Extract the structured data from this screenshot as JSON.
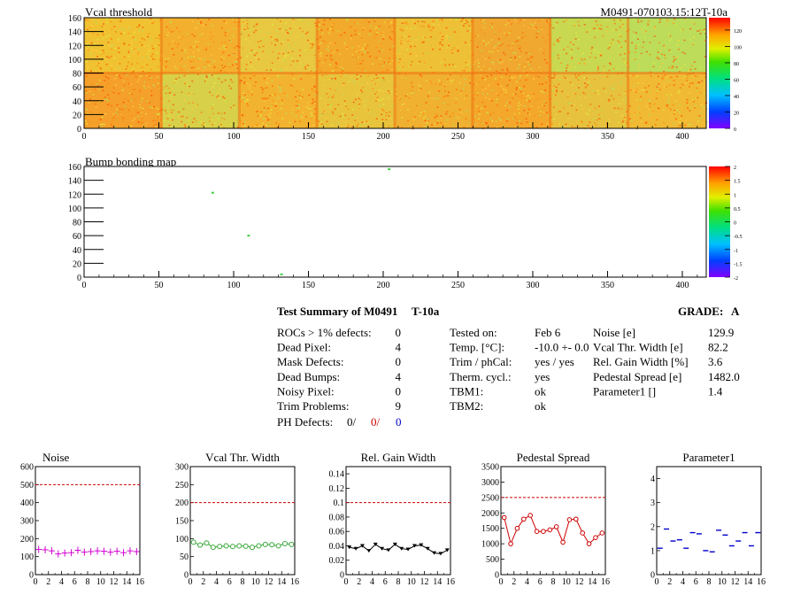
{
  "colors": {
    "map_base": "#f2d23a",
    "pink": "#d400d4",
    "green": "#3aa83a",
    "black": "#000000",
    "red": "#cc0000",
    "blue": "#0000cc",
    "ref_line": "#cc0000"
  },
  "threshold_map": {
    "title": "Vcal threshold",
    "module_label": "M0491-070103.15:12T-10a",
    "xlim": [
      0,
      416
    ],
    "ylim": [
      0,
      160
    ],
    "x_ticks": [
      "0",
      "50",
      "100",
      "150",
      "200",
      "250",
      "300",
      "350",
      "400"
    ],
    "y_ticks": [
      "0",
      "20",
      "40",
      "60",
      "80",
      "100",
      "120",
      "140",
      "160"
    ],
    "z_ticks": [
      "0",
      "20",
      "40",
      "60",
      "80",
      "100",
      "120"
    ],
    "zlim": [
      0,
      135
    ]
  },
  "bump_map": {
    "title": "Bump bonding map",
    "xlim": [
      0,
      416
    ],
    "ylim": [
      0,
      160
    ],
    "x_ticks": [
      "0",
      "50",
      "100",
      "150",
      "200",
      "250",
      "300",
      "350",
      "400"
    ],
    "y_ticks": [
      "0",
      "20",
      "40",
      "60",
      "80",
      "100",
      "120",
      "140",
      "160"
    ],
    "z_ticks": [
      "-2",
      "-1.5",
      "-1",
      "-0.5",
      "0",
      "0.5",
      "1",
      "1.5",
      "2"
    ],
    "zlim": [
      -2,
      2
    ],
    "points": [
      [
        204,
        156
      ],
      [
        86,
        122
      ],
      [
        110,
        60
      ],
      [
        132,
        4
      ]
    ]
  },
  "summary": {
    "title": "Test Summary of M0491",
    "module_type": "T-10a",
    "grade_label": "GRADE:",
    "grade": "A",
    "defects": [
      {
        "label": "ROCs > 1% defects:",
        "value": "0"
      },
      {
        "label": "Dead Pixel:",
        "value": "4"
      },
      {
        "label": "Mask Defects:",
        "value": "0"
      },
      {
        "label": "Dead Bumps:",
        "value": "4"
      },
      {
        "label": "Noisy Pixel:",
        "value": "0"
      },
      {
        "label": "Trim Problems:",
        "value": "9"
      }
    ],
    "ph_label": "PH Defects:",
    "ph_values": [
      "0/",
      "0/",
      "0"
    ],
    "conditions": [
      {
        "label": "Tested on:",
        "value": "Feb 6"
      },
      {
        "label": "Temp. [°C]:",
        "value": "-10.0 +- 0.0"
      },
      {
        "label": "Trim / phCal:",
        "value": "yes / yes"
      },
      {
        "label": "Therm. cycl.:",
        "value": "yes"
      },
      {
        "label": "TBM1:",
        "value": "ok"
      },
      {
        "label": "TBM2:",
        "value": "ok"
      }
    ],
    "results": [
      {
        "label": "Noise [e]",
        "value": "129.9"
      },
      {
        "label": "Vcal Thr. Width [e]",
        "value": "82.2"
      },
      {
        "label": "Rel. Gain Width [%]",
        "value": "3.6"
      },
      {
        "label": "Pedestal Spread [e]",
        "value": "1482.0"
      },
      {
        "label": "Parameter1 []",
        "value": "1.4"
      }
    ]
  },
  "chart_data": [
    {
      "type": "scatter",
      "title": "Noise",
      "x": [
        0,
        1,
        2,
        3,
        4,
        5,
        6,
        7,
        8,
        9,
        10,
        11,
        12,
        13,
        14,
        15
      ],
      "values": [
        140,
        138,
        132,
        115,
        120,
        122,
        135,
        125,
        128,
        132,
        130,
        125,
        130,
        122,
        132,
        128
      ],
      "ylim": [
        0,
        600
      ],
      "yticks": [
        "0",
        "100",
        "200",
        "300",
        "400",
        "500",
        "600"
      ],
      "ref": 500
    },
    {
      "type": "line",
      "title": "Vcal Thr. Width",
      "x": [
        0,
        1,
        2,
        3,
        4,
        5,
        6,
        7,
        8,
        9,
        10,
        11,
        12,
        13,
        14,
        15
      ],
      "values": [
        90,
        82,
        88,
        76,
        78,
        80,
        78,
        80,
        79,
        76,
        80,
        84,
        83,
        80,
        86,
        84
      ],
      "ylim": [
        0,
        300
      ],
      "yticks": [
        "0",
        "50",
        "100",
        "150",
        "200",
        "250",
        "300"
      ],
      "ref": 200
    },
    {
      "type": "line",
      "title": "Rel. Gain Width",
      "x": [
        0,
        1,
        2,
        3,
        4,
        5,
        6,
        7,
        8,
        9,
        10,
        11,
        12,
        13,
        14,
        15
      ],
      "values": [
        0.038,
        0.036,
        0.04,
        0.033,
        0.042,
        0.036,
        0.034,
        0.042,
        0.036,
        0.035,
        0.04,
        0.041,
        0.036,
        0.03,
        0.029,
        0.034
      ],
      "ylim": [
        0,
        0.15
      ],
      "yticks": [
        "0",
        "0.02",
        "0.04",
        "0.06",
        "0.08",
        "0.1",
        "0.12",
        "0.14"
      ],
      "ref": 0.1
    },
    {
      "type": "line",
      "title": "Pedestal Spread",
      "x": [
        0,
        1,
        2,
        3,
        4,
        5,
        6,
        7,
        8,
        9,
        10,
        11,
        12,
        13,
        14,
        15
      ],
      "values": [
        1850,
        1000,
        1500,
        1800,
        1920,
        1400,
        1400,
        1450,
        1550,
        1050,
        1780,
        1800,
        1350,
        1000,
        1200,
        1350
      ],
      "ylim": [
        0,
        3500
      ],
      "yticks": [
        "0",
        "500",
        "1000",
        "1500",
        "2000",
        "2500",
        "3000",
        "3500"
      ],
      "ref": 2500
    },
    {
      "type": "scatter",
      "title": "Parameter1",
      "x": [
        0,
        1,
        2,
        3,
        4,
        5,
        6,
        7,
        8,
        9,
        10,
        11,
        12,
        13,
        14,
        15
      ],
      "values": [
        1.1,
        1.9,
        1.4,
        1.45,
        1.1,
        1.75,
        1.7,
        1.0,
        0.95,
        1.85,
        1.65,
        1.2,
        1.4,
        1.75,
        1.2,
        1.75
      ],
      "ylim": [
        0,
        4.5
      ],
      "yticks": [
        "0",
        "1",
        "2",
        "3",
        "4"
      ],
      "ref": null
    }
  ],
  "bottom_xticks": [
    "0",
    "2",
    "4",
    "6",
    "8",
    "10",
    "12",
    "14",
    "16"
  ]
}
